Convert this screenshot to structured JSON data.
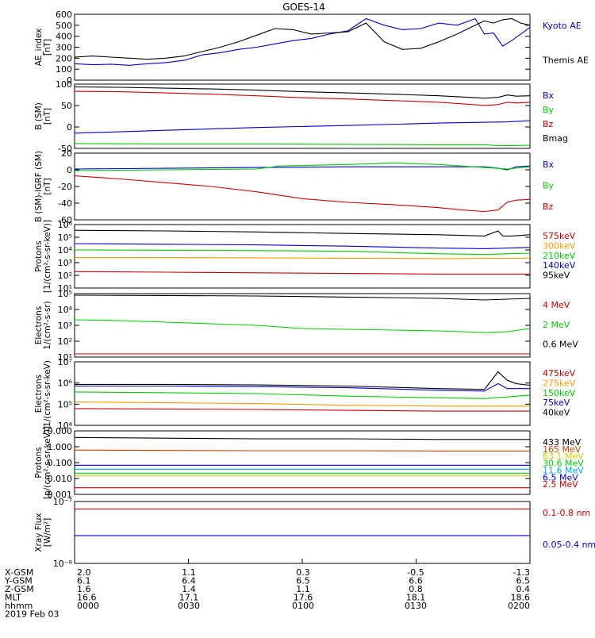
{
  "title": "GOES-14",
  "chart_data": [
    {
      "id": "ae",
      "type": "line",
      "ylabel": [
        "AE_index",
        "[nT]"
      ],
      "scale": "linear",
      "yticks": [
        "600",
        "500",
        "400",
        "300",
        "200",
        "100",
        "0"
      ],
      "ylim": [
        0,
        600
      ],
      "series": [
        {
          "name": "Kyoto AE",
          "color": "#0000cc",
          "x": [
            0,
            0.04,
            0.08,
            0.12,
            0.16,
            0.2,
            0.24,
            0.28,
            0.32,
            0.36,
            0.4,
            0.44,
            0.48,
            0.52,
            0.56,
            0.6,
            0.64,
            0.68,
            0.72,
            0.76,
            0.8,
            0.84,
            0.88,
            0.9,
            0.92,
            0.94,
            0.96,
            0.98,
            1.0
          ],
          "values": [
            150,
            140,
            145,
            135,
            150,
            160,
            180,
            230,
            250,
            280,
            300,
            330,
            360,
            380,
            420,
            450,
            560,
            500,
            460,
            470,
            520,
            500,
            560,
            420,
            430,
            310,
            360,
            420,
            480
          ]
        },
        {
          "name": "Themis AE",
          "color": "#000000",
          "x": [
            0,
            0.04,
            0.08,
            0.12,
            0.16,
            0.2,
            0.24,
            0.28,
            0.32,
            0.36,
            0.4,
            0.44,
            0.48,
            0.52,
            0.56,
            0.6,
            0.64,
            0.68,
            0.72,
            0.76,
            0.8,
            0.84,
            0.88,
            0.9,
            0.92,
            0.94,
            0.96,
            0.98,
            1.0
          ],
          "values": [
            210,
            220,
            210,
            200,
            190,
            200,
            220,
            260,
            300,
            350,
            410,
            470,
            460,
            420,
            430,
            440,
            520,
            350,
            280,
            290,
            350,
            420,
            500,
            540,
            520,
            550,
            560,
            520,
            500
          ]
        }
      ]
    },
    {
      "id": "bsm",
      "type": "line",
      "ylabel": [
        "B (SM)",
        "[nT]"
      ],
      "scale": "linear",
      "yticks": [
        "100",
        "50",
        "0",
        "-50"
      ],
      "ylim": [
        -55,
        105
      ],
      "series": [
        {
          "name": "Bx",
          "color": "#0000cc",
          "x": [
            0,
            0.2,
            0.4,
            0.6,
            0.8,
            0.9,
            0.95,
            1.0
          ],
          "values": [
            -17,
            -10,
            -3,
            2,
            8,
            10,
            11,
            14
          ]
        },
        {
          "name": "By",
          "color": "#00cc00",
          "x": [
            0,
            0.2,
            0.4,
            0.6,
            0.8,
            0.9,
            0.93,
            0.96,
            1.0
          ],
          "values": [
            -43,
            -44,
            -44,
            -45,
            -46,
            -46,
            -48,
            -48,
            -47
          ]
        },
        {
          "name": "Bz",
          "color": "#cc0000",
          "x": [
            0,
            0.1,
            0.2,
            0.3,
            0.4,
            0.5,
            0.6,
            0.7,
            0.8,
            0.9,
            0.93,
            0.95,
            0.97,
            1.0
          ],
          "values": [
            87,
            86,
            83,
            80,
            76,
            71,
            68,
            64,
            60,
            52,
            54,
            60,
            58,
            60
          ]
        },
        {
          "name": "Bmag",
          "color": "#000000",
          "x": [
            0,
            0.1,
            0.2,
            0.3,
            0.4,
            0.5,
            0.6,
            0.7,
            0.8,
            0.9,
            0.93,
            0.95,
            0.97,
            1.0
          ],
          "values": [
            98,
            97,
            95,
            93,
            90,
            86,
            83,
            80,
            76,
            70,
            72,
            78,
            75,
            76
          ]
        }
      ]
    },
    {
      "id": "bdiff",
      "type": "line",
      "ylabel": [
        "B (SM)-IGRF (SM)",
        "[nT]"
      ],
      "scale": "linear",
      "yticks": [
        "20",
        "0",
        "-20",
        "-40",
        "-60"
      ],
      "ylim": [
        -66,
        22
      ],
      "series": [
        {
          "name": "Bx",
          "color": "#0000cc",
          "x": [
            0,
            0.2,
            0.4,
            0.6,
            0.8,
            0.9,
            0.93,
            0.95,
            0.97,
            1.0
          ],
          "values": [
            1,
            2,
            3,
            4,
            4,
            4,
            2,
            0,
            4,
            5
          ]
        },
        {
          "name": "By",
          "color": "#00cc00",
          "x": [
            0,
            0.2,
            0.4,
            0.45,
            0.6,
            0.7,
            0.8,
            0.9,
            0.95,
            1.0
          ],
          "values": [
            -1,
            0,
            1,
            5,
            7,
            9,
            7,
            3,
            1,
            4
          ]
        },
        {
          "name": "Bz",
          "color": "#cc0000",
          "x": [
            0,
            0.1,
            0.2,
            0.3,
            0.4,
            0.5,
            0.6,
            0.7,
            0.8,
            0.85,
            0.9,
            0.93,
            0.95,
            0.97,
            1.0
          ],
          "values": [
            -8,
            -12,
            -17,
            -22,
            -29,
            -38,
            -43,
            -46,
            -50,
            -53,
            -55,
            -53,
            -43,
            -40,
            -39
          ]
        }
      ]
    },
    {
      "id": "protons",
      "type": "line",
      "ylabel": [
        "Protons",
        "[1/(cm²-s-sr-keV)]"
      ],
      "scale": "log",
      "yticks": [
        "10⁶",
        "10⁵",
        "10⁴",
        "10³",
        "10²",
        "10¹"
      ],
      "ylim": [
        1,
        6
      ],
      "series": [
        {
          "name": "575keV",
          "color": "#cc0000",
          "x": [
            0,
            0.2,
            0.4,
            0.6,
            0.8,
            1.0
          ],
          "values": [
            2.3,
            2.25,
            2.2,
            2.15,
            2.1,
            2.1
          ]
        },
        {
          "name": "300keV",
          "color": "#ff9900",
          "x": [
            0,
            0.2,
            0.4,
            0.6,
            0.8,
            1.0
          ],
          "values": [
            3.4,
            3.4,
            3.38,
            3.35,
            3.32,
            3.35
          ]
        },
        {
          "name": "210keV",
          "color": "#00cc00",
          "x": [
            0,
            0.2,
            0.4,
            0.6,
            0.8,
            0.9,
            1.0
          ],
          "values": [
            4.0,
            3.98,
            3.95,
            3.9,
            3.7,
            3.65,
            3.75
          ]
        },
        {
          "name": "140keV",
          "color": "#0000cc",
          "x": [
            0,
            0.2,
            0.4,
            0.6,
            0.8,
            0.9,
            1.0
          ],
          "values": [
            4.5,
            4.45,
            4.4,
            4.3,
            4.15,
            4.1,
            4.2
          ]
        },
        {
          "name": "95keV",
          "color": "#000000",
          "x": [
            0,
            0.2,
            0.4,
            0.6,
            0.8,
            0.9,
            0.93,
            0.94,
            0.96,
            1.0
          ],
          "values": [
            5.55,
            5.5,
            5.42,
            5.3,
            5.2,
            5.1,
            5.5,
            5.1,
            5.1,
            5.2
          ]
        }
      ]
    },
    {
      "id": "electrons_mev",
      "type": "line",
      "ylabel": [
        "Electrons",
        "1/(cm²-s-sr)"
      ],
      "scale": "log",
      "yticks": [
        "10⁵",
        "10⁴",
        "10³",
        "10²",
        "10¹"
      ],
      "ylim": [
        1,
        5
      ],
      "series": [
        {
          "name": "4 MeV",
          "color": "#cc0000",
          "x": [
            0,
            0.2,
            0.4,
            0.6,
            0.8,
            1.0
          ],
          "values": [
            1.2,
            1.2,
            1.2,
            1.2,
            1.2,
            1.2
          ]
        },
        {
          "name": "2 MeV",
          "color": "#00cc00",
          "x": [
            0,
            0.1,
            0.2,
            0.3,
            0.4,
            0.5,
            0.6,
            0.7,
            0.8,
            0.9,
            0.95,
            1.0
          ],
          "values": [
            3.35,
            3.3,
            3.2,
            3.1,
            3.0,
            2.8,
            2.75,
            2.7,
            2.65,
            2.55,
            2.6,
            2.8
          ]
        },
        {
          "name": "0.6 MeV",
          "color": "#000000",
          "x": [
            0,
            0.2,
            0.4,
            0.6,
            0.8,
            0.9,
            0.95,
            1.0
          ],
          "values": [
            4.9,
            4.88,
            4.85,
            4.78,
            4.7,
            4.6,
            4.65,
            4.7
          ]
        }
      ]
    },
    {
      "id": "electrons_kev",
      "type": "line",
      "ylabel": [
        "Electrons",
        "1/(cm²-s-sr-keV)"
      ],
      "scale": "log",
      "yticks": [
        "10⁷",
        "10⁶",
        "10⁵",
        "10⁴"
      ],
      "ylim": [
        3.8,
        7.6
      ],
      "series": [
        {
          "name": "475keV",
          "color": "#cc0000",
          "x": [
            0,
            0.2,
            0.4,
            0.6,
            0.8,
            1.0
          ],
          "values": [
            4.8,
            4.78,
            4.75,
            4.7,
            4.65,
            4.65
          ]
        },
        {
          "name": "275keV",
          "color": "#ff9900",
          "x": [
            0,
            0.2,
            0.4,
            0.6,
            0.8,
            1.0
          ],
          "values": [
            5.2,
            5.15,
            5.1,
            5.0,
            4.95,
            4.95
          ]
        },
        {
          "name": "150keV",
          "color": "#00cc00",
          "x": [
            0,
            0.2,
            0.4,
            0.6,
            0.8,
            0.9,
            1.0
          ],
          "values": [
            5.8,
            5.75,
            5.7,
            5.55,
            5.45,
            5.4,
            5.6
          ]
        },
        {
          "name": "75keV",
          "color": "#0000cc",
          "x": [
            0,
            0.2,
            0.4,
            0.6,
            0.8,
            0.9,
            0.93,
            0.95,
            1.0
          ],
          "values": [
            6.15,
            6.15,
            6.12,
            6.05,
            5.9,
            5.85,
            6.3,
            6.0,
            6.0
          ]
        },
        {
          "name": "40keV",
          "color": "#000000",
          "x": [
            0,
            0.2,
            0.4,
            0.6,
            0.8,
            0.9,
            0.93,
            0.95,
            0.97,
            1.0
          ],
          "values": [
            6.25,
            6.25,
            6.22,
            6.15,
            6.0,
            5.95,
            7.0,
            6.5,
            6.3,
            6.2
          ]
        }
      ]
    },
    {
      "id": "protons_mev",
      "type": "line",
      "ylabel": [
        "Protons",
        "[p/(cm²-s-sr-keV)]"
      ],
      "scale": "log",
      "yticks": [
        "10.000",
        "1.000",
        "0.100",
        "0.010",
        "0.001"
      ],
      "ylim": [
        -3.2,
        1.6
      ],
      "series": [
        {
          "name": "433 MeV",
          "color": "#000000",
          "x": [
            0,
            0.2,
            0.4,
            0.6,
            0.8,
            1.0
          ],
          "values": [
            1.1,
            1.05,
            1.0,
            1.0,
            0.95,
            0.95
          ]
        },
        {
          "name": "165 MeV",
          "color": "#cc4400",
          "x": [
            0,
            0.2,
            0.4,
            0.6,
            0.8,
            1.0
          ],
          "values": [
            0.15,
            0.12,
            0.1,
            0.1,
            0.08,
            0.08
          ]
        },
        {
          "name": "63.1 MeV",
          "color": "#cccc00",
          "x": [
            0,
            0.2,
            0.4,
            0.6,
            0.8,
            1.0
          ],
          "values": [
            -1.8,
            -1.8,
            -1.8,
            -1.8,
            -1.8,
            -1.8
          ]
        },
        {
          "name": "30.6 MeV",
          "color": "#00cc00",
          "x": [
            0,
            0.2,
            0.4,
            0.6,
            0.8,
            1.0
          ],
          "values": [
            -1.6,
            -1.6,
            -1.6,
            -1.6,
            -1.6,
            -1.6
          ]
        },
        {
          "name": "11.6 MeV",
          "color": "#00aaff",
          "x": [
            0,
            0.2,
            0.4,
            0.6,
            0.8,
            1.0
          ],
          "values": [
            -1.3,
            -1.3,
            -1.3,
            -1.3,
            -1.3,
            -1.3
          ]
        },
        {
          "name": "6.5 MeV",
          "color": "#0000cc",
          "x": [
            0,
            0.2,
            0.4,
            0.6,
            0.8,
            1.0
          ],
          "values": [
            -1.0,
            -1.0,
            -1.0,
            -1.0,
            -1.0,
            -1.0
          ]
        },
        {
          "name": "2.5 MeV",
          "color": "#cc0000",
          "x": [
            0,
            0.2,
            0.4,
            0.6,
            0.8,
            1.0
          ],
          "values": [
            -2.7,
            -2.7,
            -2.7,
            -2.7,
            -2.7,
            -2.7
          ]
        }
      ]
    },
    {
      "id": "xray",
      "type": "line",
      "ylabel": [
        "Xray Flux",
        "[W/m²]"
      ],
      "scale": "log",
      "yticks": [
        "10⁻⁷",
        "10⁻⁸"
      ],
      "ylim": [
        -8,
        -7
      ],
      "series": [
        {
          "name": "0.1-0.8 nm",
          "color": "#cc0000",
          "x": [
            0,
            0.2,
            0.4,
            0.6,
            0.8,
            1.0
          ],
          "values": [
            -7.12,
            -7.12,
            -7.12,
            -7.12,
            -7.12,
            -7.12
          ]
        },
        {
          "name": "0.05-0.4 nm",
          "color": "#0000cc",
          "x": [
            0,
            0.2,
            0.4,
            0.6,
            0.8,
            1.0
          ],
          "values": [
            -7.55,
            -7.55,
            -7.55,
            -7.55,
            -7.55,
            -7.55
          ]
        }
      ]
    }
  ],
  "ephemeris": {
    "rows": [
      {
        "label": "X-GSM",
        "values": [
          "2.0",
          "1.1",
          "0.3",
          "-0.5",
          "-1.3"
        ]
      },
      {
        "label": "Y-GSM",
        "values": [
          "6.1",
          "6.4",
          "6.5",
          "6.6",
          "6.5"
        ]
      },
      {
        "label": "Z-GSM",
        "values": [
          "1.6",
          "1.4",
          "1.1",
          "0.8",
          "0.4"
        ]
      },
      {
        "label": "MLT",
        "values": [
          "16.6",
          "17.1",
          "17.6",
          "18.1",
          "18.6"
        ]
      },
      {
        "label": "hhmm",
        "values": [
          "0000",
          "0030",
          "0100",
          "0130",
          "0200"
        ]
      }
    ],
    "date": "2019 Feb 03"
  }
}
